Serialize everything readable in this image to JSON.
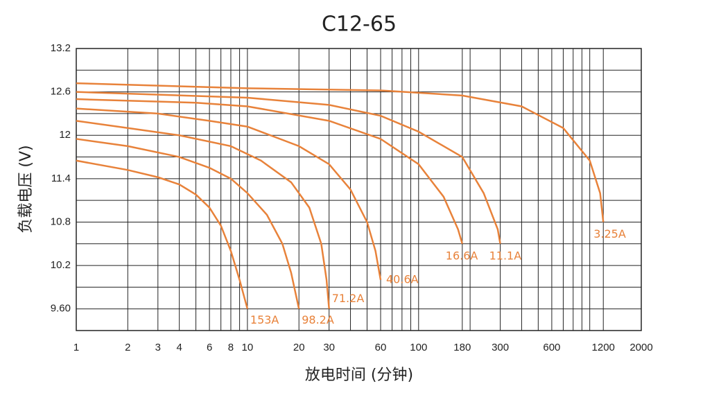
{
  "chart_data": {
    "type": "line",
    "title": "C12-65",
    "x_label": "放电时间 (分钟)",
    "y_label": "负载电压 (V)",
    "x_scale": "log",
    "xlim": [
      1,
      2000
    ],
    "xticks": [
      1,
      2,
      3,
      4,
      6,
      8,
      10,
      20,
      30,
      60,
      100,
      180,
      300,
      600,
      1200,
      2000
    ],
    "xgrid": [
      1,
      2,
      3,
      4,
      5,
      6,
      7,
      8,
      9,
      10,
      20,
      30,
      40,
      50,
      60,
      70,
      80,
      90,
      100,
      180,
      200,
      300,
      400,
      500,
      600,
      700,
      800,
      900,
      1000,
      1200,
      2000
    ],
    "ylim": [
      9.3,
      13.2
    ],
    "yticks": [
      {
        "value": 9.6,
        "label": "9.60"
      },
      10.2,
      10.8,
      11.4,
      12.0,
      12.6,
      13.2
    ],
    "ygrid": [
      9.3,
      9.6,
      9.9,
      10.2,
      10.5,
      10.8,
      11.1,
      11.4,
      11.7,
      12.0,
      12.3,
      12.6,
      12.9,
      13.2
    ],
    "series": [
      {
        "name": "153A",
        "color": "#e8823a",
        "x": [
          1,
          2,
          3,
          4,
          5,
          6,
          7,
          8,
          9,
          10
        ],
        "values": [
          11.65,
          11.52,
          11.42,
          11.32,
          11.18,
          11.0,
          10.75,
          10.4,
          10.0,
          9.6
        ]
      },
      {
        "name": "98.2A",
        "color": "#e8823a",
        "x": [
          1,
          2,
          4,
          6,
          8,
          10,
          13,
          16,
          18,
          20
        ],
        "values": [
          11.95,
          11.85,
          11.7,
          11.55,
          11.4,
          11.2,
          10.9,
          10.5,
          10.1,
          9.6
        ]
      },
      {
        "name": "71.2A",
        "color": "#e8823a",
        "x": [
          1,
          2,
          4,
          8,
          12,
          18,
          23,
          27,
          29,
          30
        ],
        "values": [
          12.2,
          12.1,
          12.0,
          11.85,
          11.65,
          11.35,
          11.0,
          10.5,
          10.0,
          9.6
        ]
      },
      {
        "name": "40.6A",
        "color": "#e8823a",
        "x": [
          1,
          3,
          6,
          10,
          20,
          30,
          40,
          50,
          56,
          60
        ],
        "values": [
          12.37,
          12.3,
          12.2,
          12.12,
          11.85,
          11.6,
          11.25,
          10.8,
          10.4,
          10.0
        ]
      },
      {
        "name": "16.6A",
        "color": "#e8823a",
        "x": [
          1,
          5,
          10,
          30,
          60,
          100,
          140,
          170,
          180
        ],
        "values": [
          12.5,
          12.45,
          12.4,
          12.2,
          11.95,
          11.6,
          11.15,
          10.7,
          10.5
        ]
      },
      {
        "name": "11.1A",
        "color": "#e8823a",
        "x": [
          1,
          10,
          30,
          60,
          100,
          180,
          240,
          290,
          300
        ],
        "values": [
          12.6,
          12.52,
          12.42,
          12.27,
          12.05,
          11.7,
          11.2,
          10.7,
          10.5
        ]
      },
      {
        "name": "3.25A",
        "color": "#e8823a",
        "x": [
          1,
          10,
          60,
          180,
          400,
          700,
          1000,
          1150,
          1200
        ],
        "values": [
          12.72,
          12.65,
          12.62,
          12.55,
          12.4,
          12.1,
          11.65,
          11.2,
          10.8
        ]
      }
    ]
  }
}
